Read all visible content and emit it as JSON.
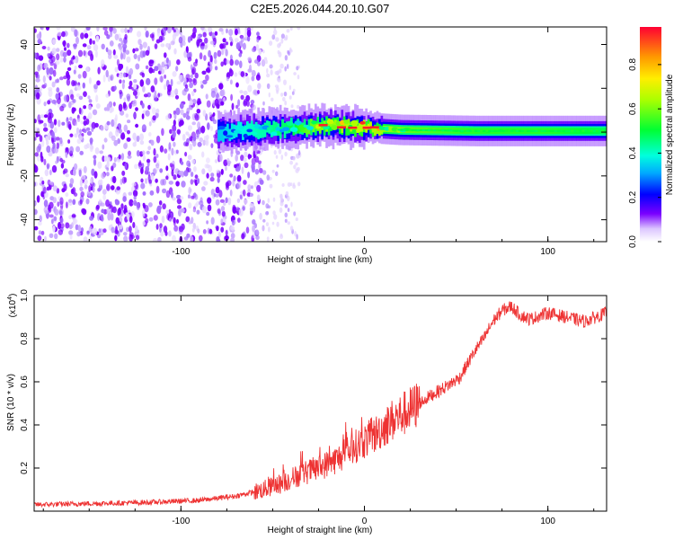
{
  "title": "C2E5.2026.044.20.10.G07",
  "chart_data": [
    {
      "type": "heatmap",
      "xlabel": "Height of straight line (km)",
      "ylabel": "Frequency (Hz)",
      "xlim": [
        -180,
        132
      ],
      "ylim": [
        -50,
        48
      ],
      "xticks": [
        -100,
        0,
        100
      ],
      "xtick_labels": [
        "-100",
        "0",
        "100"
      ],
      "yticks": [
        -40,
        -20,
        0,
        20,
        40
      ],
      "ytick_labels": [
        "-40",
        "-20",
        "0",
        "20",
        "40"
      ],
      "colorbar": {
        "label": "Normalized spectral amplitude",
        "range": [
          0,
          0.97
        ],
        "ticks": [
          0.0,
          0.2,
          0.4,
          0.6,
          0.8
        ],
        "tick_labels": [
          "0.0",
          "0.2",
          "0.4",
          "0.6",
          "0.8"
        ],
        "colormap": "rainbow"
      },
      "features": {
        "noise_region_x": [
          -180,
          -55
        ],
        "sparse_noise_x": [
          -55,
          -35
        ],
        "signal_start_x": -82,
        "signal_track": [
          {
            "x": -80,
            "f": 0,
            "amp": 0.35
          },
          {
            "x": -40,
            "f": 2,
            "amp": 0.5
          },
          {
            "x": -20,
            "f": 3,
            "amp": 0.75
          },
          {
            "x": 0,
            "f": 2,
            "amp": 0.95
          },
          {
            "x": 20,
            "f": 1,
            "amp": 0.6
          },
          {
            "x": 60,
            "f": 0.5,
            "amp": 0.55
          },
          {
            "x": 100,
            "f": 0.5,
            "amp": 0.55
          },
          {
            "x": 132,
            "f": 0.5,
            "amp": 0.5
          }
        ]
      }
    },
    {
      "type": "line",
      "xlabel": "Height of straight line (km)",
      "ylabel": "SNR (10 * v/v)",
      "y_scale_label": "(x10",
      "y_scale_exp": "4",
      "y_scale_close": ")",
      "xlim": [
        -180,
        132
      ],
      "ylim": [
        0,
        1.0
      ],
      "xticks": [
        -100,
        0,
        100
      ],
      "xtick_labels": [
        "-100",
        "0",
        "100"
      ],
      "yticks": [
        0.2,
        0.4,
        0.6,
        0.8,
        1.0
      ],
      "ytick_labels": [
        "0.2",
        "0.4",
        "0.6",
        "0.8",
        "1.0"
      ],
      "series": [
        {
          "name": "SNR",
          "color": "#ee3333",
          "x": [
            -180,
            -150,
            -120,
            -90,
            -70,
            -55,
            -45,
            -35,
            -25,
            -15,
            -5,
            5,
            15,
            25,
            35,
            45,
            52,
            60,
            65,
            70,
            75,
            80,
            85,
            90,
            100,
            110,
            120,
            132
          ],
          "y": [
            0.03,
            0.035,
            0.04,
            0.05,
            0.07,
            0.1,
            0.13,
            0.17,
            0.2,
            0.24,
            0.3,
            0.35,
            0.42,
            0.47,
            0.53,
            0.58,
            0.62,
            0.74,
            0.8,
            0.88,
            0.93,
            0.95,
            0.91,
            0.89,
            0.92,
            0.9,
            0.88,
            0.92
          ]
        }
      ]
    }
  ]
}
